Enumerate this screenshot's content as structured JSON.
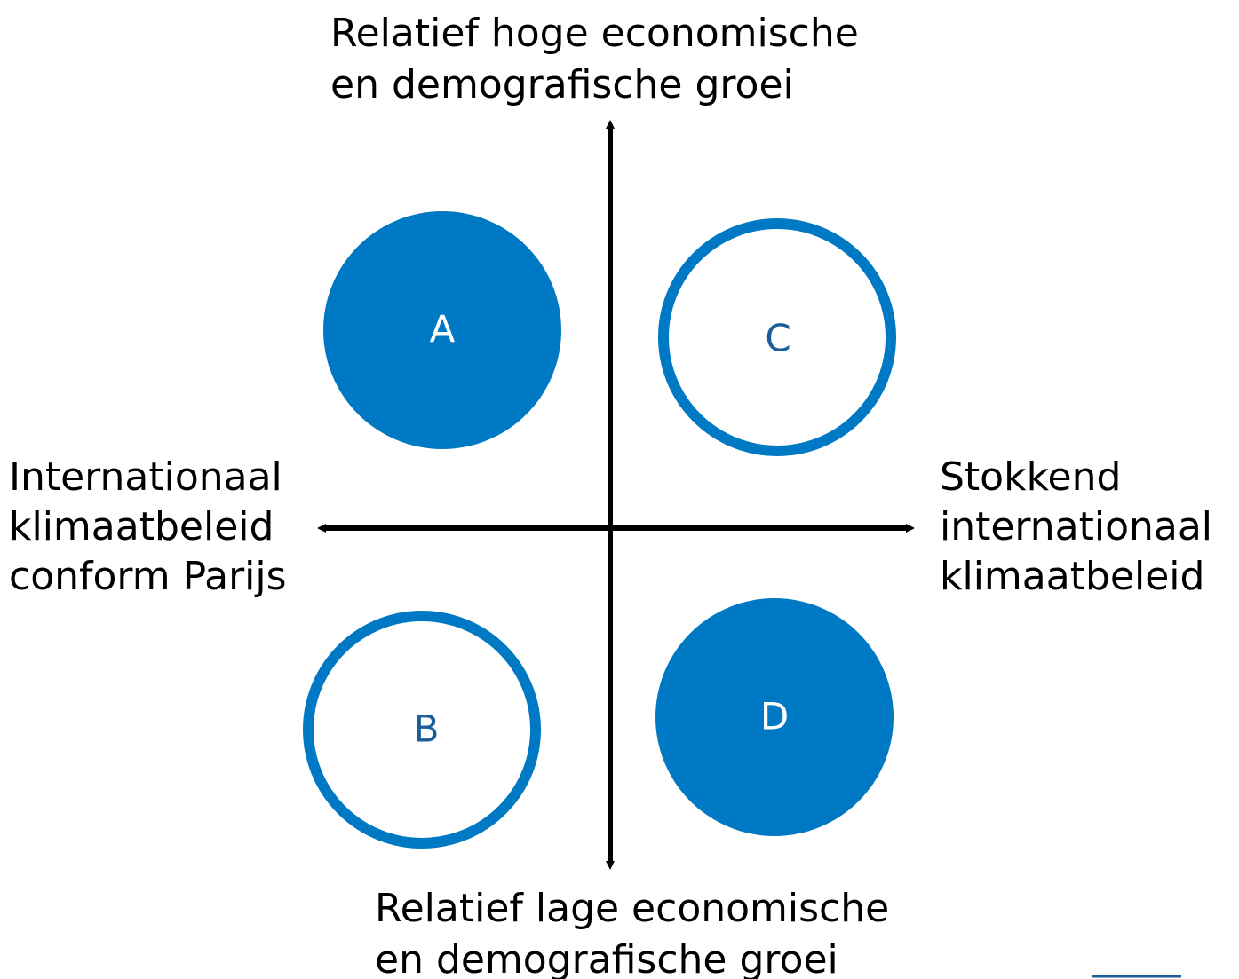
{
  "axes": {
    "top": [
      "Relatief hoge economische",
      "en demografische groei"
    ],
    "bottom": [
      "Relatief lage economische",
      "en demografische groei"
    ],
    "left": [
      "Internationaal",
      "klimaatbeleid",
      "conform Parijs"
    ],
    "right": [
      "Stokkend",
      "internationaal",
      "klimaatbeleid"
    ]
  },
  "nodes": [
    {
      "label": "A"
    },
    {
      "label": "B"
    },
    {
      "label": "C"
    },
    {
      "label": "D"
    }
  ]
}
